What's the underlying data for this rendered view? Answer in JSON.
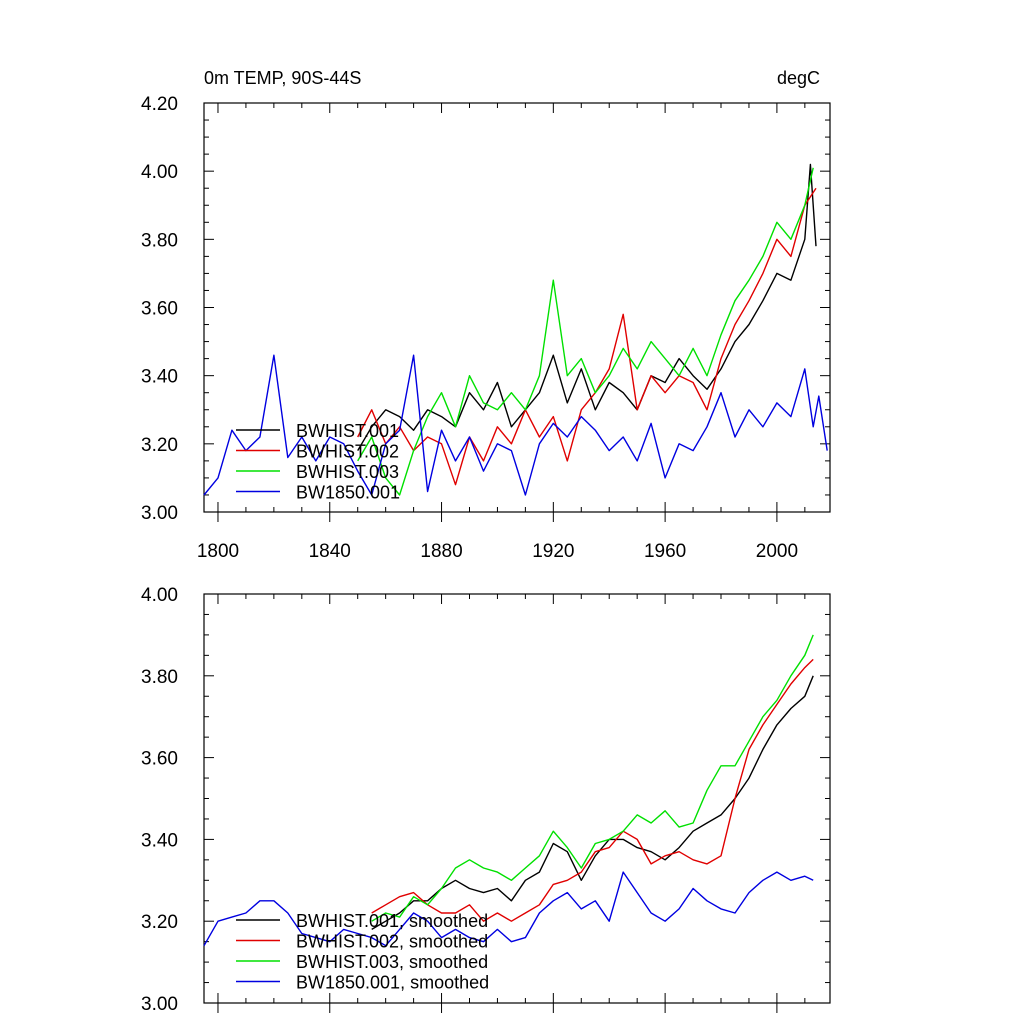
{
  "chart_data": [
    {
      "type": "line",
      "title_left": "0m TEMP, 90S-44S",
      "title_right": "degC",
      "xlim": [
        1795,
        2019
      ],
      "ylim": [
        3.0,
        4.2
      ],
      "yticks": [
        "3.00",
        "3.20",
        "3.40",
        "3.60",
        "3.80",
        "4.00",
        "4.20"
      ],
      "xticks": [
        "1800",
        "1840",
        "1880",
        "1920",
        "1960",
        "2000"
      ],
      "legend_position": "bottom-left",
      "grid": false,
      "series": [
        {
          "name": "BWHIST.001",
          "color": "#000000",
          "x": [
            1850,
            1855,
            1860,
            1865,
            1870,
            1875,
            1880,
            1885,
            1890,
            1895,
            1900,
            1905,
            1910,
            1915,
            1920,
            1925,
            1930,
            1935,
            1940,
            1945,
            1950,
            1955,
            1960,
            1965,
            1970,
            1975,
            1980,
            1985,
            1990,
            1995,
            2000,
            2005,
            2010,
            2012,
            2014
          ],
          "y": [
            3.18,
            3.25,
            3.3,
            3.28,
            3.24,
            3.3,
            3.28,
            3.25,
            3.35,
            3.3,
            3.38,
            3.25,
            3.3,
            3.35,
            3.46,
            3.32,
            3.42,
            3.3,
            3.38,
            3.35,
            3.3,
            3.4,
            3.38,
            3.45,
            3.4,
            3.36,
            3.42,
            3.5,
            3.55,
            3.62,
            3.7,
            3.68,
            3.8,
            4.02,
            3.78
          ]
        },
        {
          "name": "BWHIST.002",
          "color": "#e00000",
          "x": [
            1850,
            1855,
            1860,
            1865,
            1870,
            1875,
            1880,
            1885,
            1890,
            1895,
            1900,
            1905,
            1910,
            1915,
            1920,
            1925,
            1930,
            1935,
            1940,
            1945,
            1950,
            1955,
            1960,
            1965,
            1970,
            1975,
            1980,
            1985,
            1990,
            1995,
            2000,
            2005,
            2010,
            2014
          ],
          "y": [
            3.22,
            3.3,
            3.2,
            3.25,
            3.18,
            3.22,
            3.2,
            3.08,
            3.22,
            3.15,
            3.25,
            3.2,
            3.3,
            3.22,
            3.28,
            3.15,
            3.3,
            3.35,
            3.42,
            3.58,
            3.3,
            3.4,
            3.35,
            3.4,
            3.38,
            3.3,
            3.45,
            3.55,
            3.62,
            3.7,
            3.8,
            3.75,
            3.9,
            3.95
          ]
        },
        {
          "name": "BWHIST.003",
          "color": "#00e000",
          "x": [
            1850,
            1855,
            1860,
            1865,
            1870,
            1875,
            1880,
            1885,
            1890,
            1895,
            1900,
            1905,
            1910,
            1915,
            1920,
            1925,
            1930,
            1935,
            1940,
            1945,
            1950,
            1955,
            1960,
            1965,
            1970,
            1975,
            1980,
            1985,
            1990,
            1995,
            2000,
            2005,
            2010,
            2013
          ],
          "y": [
            3.15,
            3.22,
            3.1,
            3.05,
            3.18,
            3.28,
            3.35,
            3.25,
            3.4,
            3.32,
            3.3,
            3.35,
            3.3,
            3.4,
            3.68,
            3.4,
            3.45,
            3.35,
            3.4,
            3.48,
            3.42,
            3.5,
            3.45,
            3.4,
            3.48,
            3.4,
            3.52,
            3.62,
            3.68,
            3.75,
            3.85,
            3.8,
            3.9,
            4.01
          ]
        },
        {
          "name": "BW1850.001",
          "color": "#0000e0",
          "x": [
            1795,
            1800,
            1805,
            1810,
            1815,
            1820,
            1825,
            1830,
            1835,
            1840,
            1845,
            1850,
            1855,
            1860,
            1865,
            1870,
            1875,
            1880,
            1885,
            1890,
            1895,
            1900,
            1905,
            1910,
            1915,
            1920,
            1925,
            1930,
            1935,
            1940,
            1945,
            1950,
            1955,
            1960,
            1965,
            1970,
            1975,
            1980,
            1985,
            1990,
            1995,
            2000,
            2005,
            2010,
            2013,
            2015,
            2018
          ],
          "y": [
            3.05,
            3.1,
            3.24,
            3.18,
            3.22,
            3.46,
            3.16,
            3.22,
            3.15,
            3.22,
            3.2,
            3.12,
            3.05,
            3.2,
            3.24,
            3.46,
            3.06,
            3.24,
            3.15,
            3.22,
            3.12,
            3.2,
            3.18,
            3.05,
            3.2,
            3.26,
            3.22,
            3.28,
            3.24,
            3.18,
            3.22,
            3.15,
            3.26,
            3.1,
            3.2,
            3.18,
            3.25,
            3.35,
            3.22,
            3.3,
            3.25,
            3.32,
            3.28,
            3.42,
            3.25,
            3.34,
            3.18
          ]
        }
      ]
    },
    {
      "type": "line",
      "xlim": [
        1795,
        2019
      ],
      "ylim": [
        3.0,
        4.0
      ],
      "yticks": [
        "3.00",
        "3.20",
        "3.40",
        "3.60",
        "3.80",
        "4.00"
      ],
      "legend_position": "bottom-left",
      "grid": false,
      "series": [
        {
          "name": "BWHIST.001, smoothed",
          "color": "#000000",
          "x": [
            1855,
            1860,
            1865,
            1870,
            1875,
            1880,
            1885,
            1890,
            1895,
            1900,
            1905,
            1910,
            1915,
            1920,
            1925,
            1930,
            1935,
            1940,
            1945,
            1950,
            1955,
            1960,
            1965,
            1970,
            1975,
            1980,
            1985,
            1990,
            1995,
            2000,
            2005,
            2010,
            2013
          ],
          "y": [
            3.18,
            3.2,
            3.22,
            3.25,
            3.25,
            3.28,
            3.3,
            3.28,
            3.27,
            3.28,
            3.25,
            3.3,
            3.32,
            3.39,
            3.37,
            3.3,
            3.36,
            3.4,
            3.4,
            3.38,
            3.37,
            3.35,
            3.38,
            3.42,
            3.44,
            3.46,
            3.5,
            3.55,
            3.62,
            3.68,
            3.72,
            3.75,
            3.8
          ]
        },
        {
          "name": "BWHIST.002, smoothed",
          "color": "#e00000",
          "x": [
            1855,
            1860,
            1865,
            1870,
            1875,
            1880,
            1885,
            1890,
            1895,
            1900,
            1905,
            1910,
            1915,
            1920,
            1925,
            1930,
            1935,
            1940,
            1945,
            1950,
            1955,
            1960,
            1965,
            1970,
            1975,
            1980,
            1985,
            1990,
            1995,
            2000,
            2005,
            2010,
            2013
          ],
          "y": [
            3.22,
            3.24,
            3.26,
            3.27,
            3.24,
            3.22,
            3.22,
            3.24,
            3.2,
            3.22,
            3.2,
            3.22,
            3.24,
            3.29,
            3.3,
            3.32,
            3.37,
            3.38,
            3.42,
            3.4,
            3.34,
            3.36,
            3.37,
            3.35,
            3.34,
            3.36,
            3.5,
            3.62,
            3.68,
            3.73,
            3.78,
            3.82,
            3.84
          ]
        },
        {
          "name": "BWHIST.003, smoothed",
          "color": "#00e000",
          "x": [
            1855,
            1860,
            1865,
            1870,
            1875,
            1880,
            1885,
            1890,
            1895,
            1900,
            1905,
            1910,
            1915,
            1920,
            1925,
            1930,
            1935,
            1940,
            1945,
            1950,
            1955,
            1960,
            1965,
            1970,
            1975,
            1980,
            1985,
            1990,
            1995,
            2000,
            2005,
            2010,
            2013
          ],
          "y": [
            3.2,
            3.22,
            3.21,
            3.26,
            3.24,
            3.28,
            3.33,
            3.35,
            3.33,
            3.32,
            3.3,
            3.33,
            3.36,
            3.42,
            3.38,
            3.33,
            3.39,
            3.4,
            3.42,
            3.46,
            3.44,
            3.47,
            3.43,
            3.44,
            3.52,
            3.58,
            3.58,
            3.64,
            3.7,
            3.74,
            3.8,
            3.85,
            3.9
          ]
        },
        {
          "name": "BW1850.001, smoothed",
          "color": "#0000e0",
          "x": [
            1795,
            1800,
            1805,
            1810,
            1815,
            1820,
            1825,
            1830,
            1835,
            1840,
            1845,
            1850,
            1855,
            1860,
            1865,
            1870,
            1875,
            1880,
            1885,
            1890,
            1895,
            1900,
            1905,
            1910,
            1915,
            1920,
            1925,
            1930,
            1935,
            1940,
            1945,
            1950,
            1955,
            1960,
            1965,
            1970,
            1975,
            1980,
            1985,
            1990,
            1995,
            2000,
            2005,
            2010,
            2013
          ],
          "y": [
            3.14,
            3.2,
            3.21,
            3.22,
            3.25,
            3.25,
            3.22,
            3.17,
            3.16,
            3.15,
            3.18,
            3.17,
            3.16,
            3.14,
            3.18,
            3.22,
            3.2,
            3.16,
            3.18,
            3.16,
            3.15,
            3.18,
            3.15,
            3.16,
            3.22,
            3.25,
            3.27,
            3.23,
            3.25,
            3.2,
            3.32,
            3.27,
            3.22,
            3.2,
            3.23,
            3.28,
            3.25,
            3.23,
            3.22,
            3.27,
            3.3,
            3.32,
            3.3,
            3.31,
            3.3
          ]
        }
      ]
    }
  ]
}
